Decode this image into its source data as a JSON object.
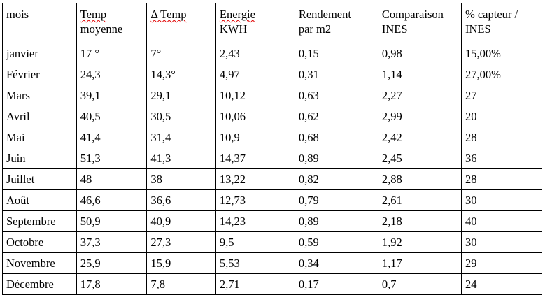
{
  "table": {
    "headers": [
      {
        "first": "mois",
        "second": ""
      },
      {
        "first": "Temp",
        "second": "moyenne"
      },
      {
        "first": "Δ Temp",
        "second": ""
      },
      {
        "first": "Energie",
        "second": "KWH"
      },
      {
        "first": "Rendement",
        "second": "par m2"
      },
      {
        "first": "Comparaison",
        "second": "INES"
      },
      {
        "first": "% capteur /",
        "second": "INES"
      }
    ],
    "rows": [
      [
        "janvier",
        "17 °",
        "7°",
        "2,43",
        "0,15",
        "0,98",
        "15,00%"
      ],
      [
        "Février",
        "24,3",
        "14,3°",
        "4,97",
        "0,31",
        "1,14",
        "27,00%"
      ],
      [
        "Mars",
        "39,1",
        "29,1",
        "10,12",
        "0,63",
        "2,27",
        "27"
      ],
      [
        "Avril",
        "40,5",
        "30,5",
        "10,06",
        "0,62",
        "2,99",
        "20"
      ],
      [
        "Mai",
        "41,4",
        "31,4",
        "10,9",
        "0,68",
        "2,42",
        "28"
      ],
      [
        "Juin",
        "51,3",
        "41,3",
        "14,37",
        "0,89",
        "2,45",
        "36"
      ],
      [
        "Juillet",
        "48",
        "38",
        "13,22",
        "0,82",
        "2,88",
        "28"
      ],
      [
        "Août",
        "46,6",
        "36,6",
        "12,73",
        "0,79",
        "2,61",
        "30"
      ],
      [
        "Septembre",
        "50,9",
        "40,9",
        "14,23",
        "0,89",
        "2,18",
        "40"
      ],
      [
        "Octobre",
        "37,3",
        "27,3",
        "9,5",
        "0,59",
        "1,92",
        "30"
      ],
      [
        "Novembre",
        "25,9",
        "15,9",
        "5,53",
        "0,34",
        "1,17",
        "29"
      ],
      [
        "Décembre",
        "17,8",
        "7,8",
        "2,71",
        "0,17",
        "0,7",
        "24"
      ]
    ]
  }
}
